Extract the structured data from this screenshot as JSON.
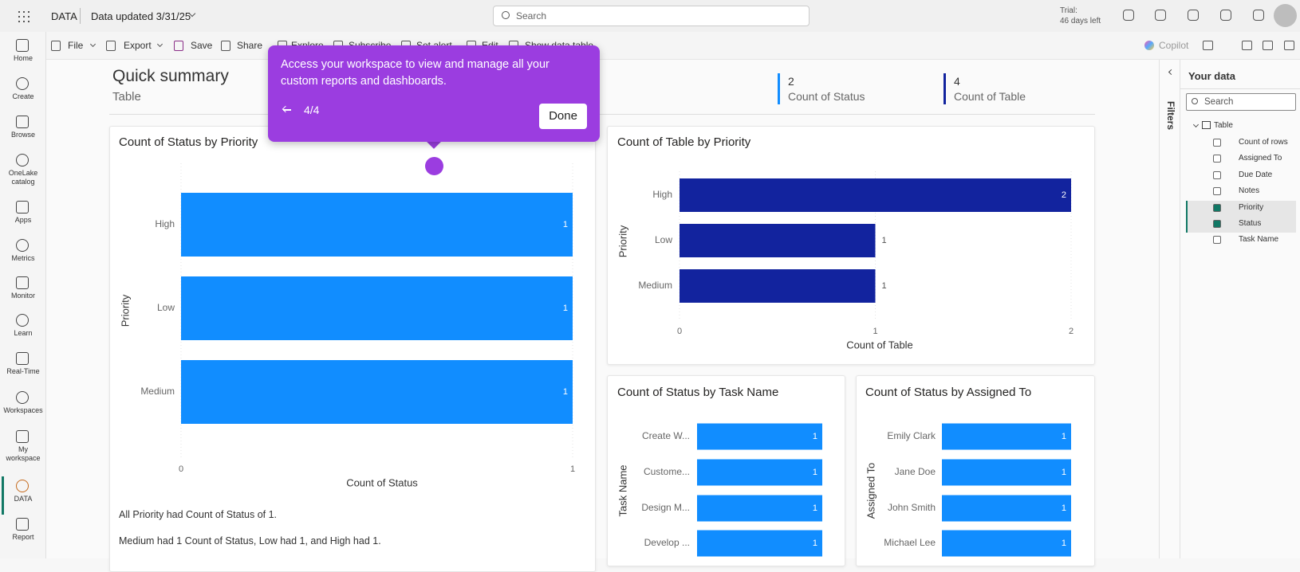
{
  "topbar": {
    "app": "DATA",
    "updated": "Data updated 3/31/25",
    "search": "Search",
    "trial": "Trial:",
    "trial_days": "46 days left"
  },
  "nav": [
    "Home",
    "Create",
    "Browse",
    "OneLake catalog",
    "Apps",
    "Metrics",
    "Monitor",
    "Learn",
    "Real-Time",
    "Workspaces",
    "My workspace",
    "DATA",
    "Report"
  ],
  "toolbar": [
    "File",
    "Export",
    "Save",
    "Share",
    "Explore",
    "Subscribe",
    "Set alert",
    "Edit",
    "Show data table"
  ],
  "copilot": "Copilot",
  "summary": {
    "title": "Quick summary",
    "subtitle": "Table",
    "kpis": [
      {
        "value": 2,
        "label": "Count of Status"
      },
      {
        "value": 4,
        "label": "Count of Table"
      }
    ]
  },
  "tooltip": {
    "text": "Access your workspace to view and manage all your custom reports and dashboards.",
    "step": "4/4",
    "button": "Done"
  },
  "chart_data": [
    {
      "type": "bar",
      "title": "Count of Status by Priority",
      "categories": [
        "High",
        "Low",
        "Medium"
      ],
      "values": [
        1,
        1,
        1
      ],
      "color": "#118dff",
      "xlim": [
        0,
        1
      ],
      "xticks": [
        0,
        1
      ],
      "x_label": "Count of Status",
      "y_label": "Priority"
    },
    {
      "type": "bar",
      "title": "Count of Table by Priority",
      "categories": [
        "High",
        "Low",
        "Medium"
      ],
      "values": [
        2,
        1,
        1
      ],
      "color": "#12239e",
      "xlim": [
        0,
        2
      ],
      "xticks": [
        0,
        1,
        2
      ],
      "x_label": "Count of Table",
      "y_label": "Priority"
    },
    {
      "type": "bar",
      "title": "Count of Status by Task Name",
      "categories": [
        "Create W...",
        "Custome...",
        "Design M...",
        "Develop ..."
      ],
      "values": [
        1,
        1,
        1,
        1
      ],
      "color": "#118dff",
      "xlim": [
        0,
        1
      ],
      "y_label": "Task Name"
    },
    {
      "type": "bar",
      "title": "Count of Status by Assigned To",
      "categories": [
        "Emily Clark",
        "Jane Doe",
        "John Smith",
        "Michael Lee"
      ],
      "values": [
        1,
        1,
        1,
        1
      ],
      "color": "#118dff",
      "xlim": [
        0,
        1
      ],
      "y_label": "Assigned To"
    }
  ],
  "narrative": [
    "All Priority had Count of Status of 1.",
    "Medium had 1 Count of Status, Low had 1, and High had 1."
  ],
  "filters": "Filters",
  "data_pane": {
    "title": "Your data",
    "search": "Search",
    "table": "Table",
    "fields": [
      {
        "name": "Count of rows",
        "checked": false
      },
      {
        "name": "Assigned To",
        "checked": false
      },
      {
        "name": "Due Date",
        "checked": false
      },
      {
        "name": "Notes",
        "checked": false
      },
      {
        "name": "Priority",
        "checked": true
      },
      {
        "name": "Status",
        "checked": true
      },
      {
        "name": "Task Name",
        "checked": false
      }
    ]
  }
}
